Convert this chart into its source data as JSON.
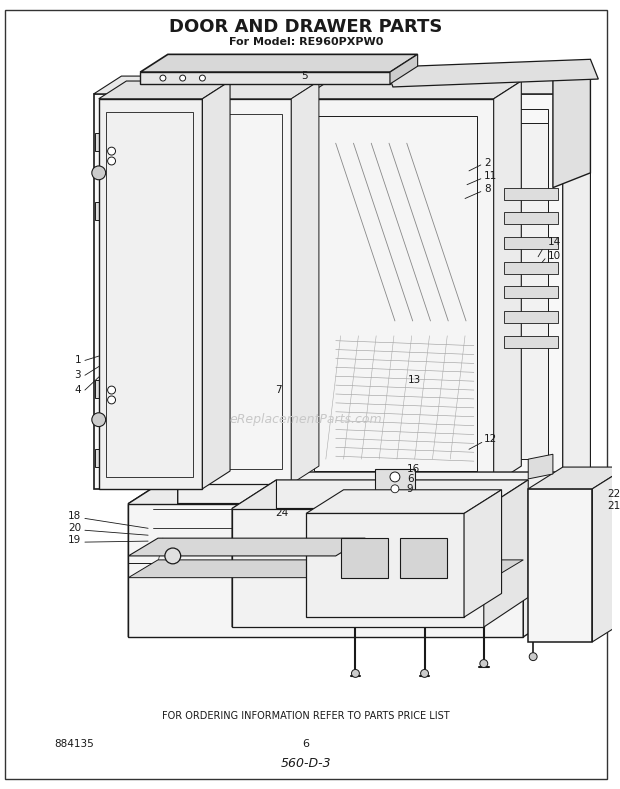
{
  "title": "DOOR AND DRAWER PARTS",
  "subtitle": "For Model: RE960PXPW0",
  "footer_text": "FOR ORDERING INFORMATION REFER TO PARTS PRICE LIST",
  "bottom_left": "884135",
  "bottom_center": "6",
  "bottom_script": "560-D-3",
  "watermark": "eReplacementParts.com",
  "bg_color": "#ffffff",
  "lc": "#1a1a1a",
  "figsize": [
    6.2,
    7.89
  ],
  "dpi": 100
}
